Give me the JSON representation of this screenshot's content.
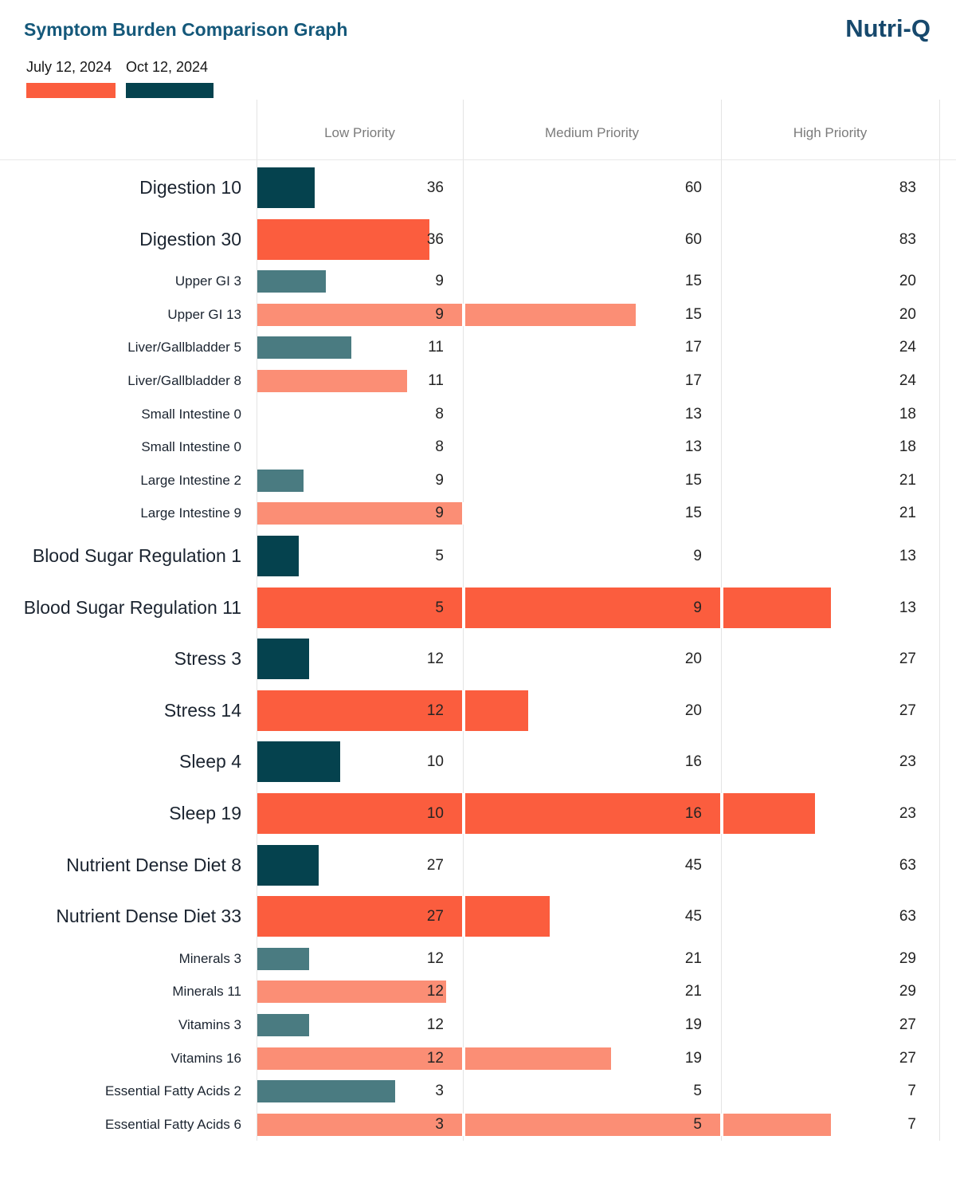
{
  "header": {
    "title": "Symptom Burden Comparison Graph",
    "brand": "Nutri-Q",
    "legend": [
      {
        "label": "July 12, 2024",
        "color": "#fb5d3e"
      },
      {
        "label": "Oct 12, 2024",
        "color": "#05424e"
      }
    ]
  },
  "columns": [
    "Low Priority",
    "Medium Priority",
    "High Priority"
  ],
  "chart_data": {
    "type": "bar",
    "orientation": "horizontal",
    "title": "Symptom Burden Comparison Graph",
    "legend_position": "top-left",
    "column_headers": [
      "Low Priority",
      "Medium Priority",
      "High Priority"
    ],
    "note": "Each row shows a symptom-burden score bar scaled piecewise across Low/Medium/High priority threshold columns; the three numbers per row are that section's Low, Medium and High priority thresholds.",
    "colors": {
      "July 12, 2024": {
        "major": "#fb5d3e",
        "sub": "#fb8e75"
      },
      "Oct 12, 2024": {
        "major": "#05424e",
        "sub": "#4a7b81"
      }
    },
    "rows": [
      {
        "label": "Digestion 10",
        "value": 10,
        "thresholds": [
          36,
          60,
          83
        ],
        "series": "Oct 12, 2024",
        "group": "major"
      },
      {
        "label": "Digestion 30",
        "value": 30,
        "thresholds": [
          36,
          60,
          83
        ],
        "series": "July 12, 2024",
        "group": "major"
      },
      {
        "label": "Upper GI 3",
        "value": 3,
        "thresholds": [
          9,
          15,
          20
        ],
        "series": "Oct 12, 2024",
        "group": "sub"
      },
      {
        "label": "Upper GI 13",
        "value": 13,
        "thresholds": [
          9,
          15,
          20
        ],
        "series": "July 12, 2024",
        "group": "sub"
      },
      {
        "label": "Liver/Gallbladder 5",
        "value": 5,
        "thresholds": [
          11,
          17,
          24
        ],
        "series": "Oct 12, 2024",
        "group": "sub"
      },
      {
        "label": "Liver/Gallbladder 8",
        "value": 8,
        "thresholds": [
          11,
          17,
          24
        ],
        "series": "July 12, 2024",
        "group": "sub"
      },
      {
        "label": "Small Intestine 0",
        "value": 0,
        "thresholds": [
          8,
          13,
          18
        ],
        "series": "Oct 12, 2024",
        "group": "sub"
      },
      {
        "label": "Small Intestine 0",
        "value": 0,
        "thresholds": [
          8,
          13,
          18
        ],
        "series": "July 12, 2024",
        "group": "sub"
      },
      {
        "label": "Large Intestine 2",
        "value": 2,
        "thresholds": [
          9,
          15,
          21
        ],
        "series": "Oct 12, 2024",
        "group": "sub"
      },
      {
        "label": "Large Intestine 9",
        "value": 9,
        "thresholds": [
          9,
          15,
          21
        ],
        "series": "July 12, 2024",
        "group": "sub"
      },
      {
        "label": "Blood Sugar Regulation 1",
        "value": 1,
        "thresholds": [
          5,
          9,
          13
        ],
        "series": "Oct 12, 2024",
        "group": "major"
      },
      {
        "label": "Blood Sugar Regulation 11",
        "value": 11,
        "thresholds": [
          5,
          9,
          13
        ],
        "series": "July 12, 2024",
        "group": "major"
      },
      {
        "label": "Stress 3",
        "value": 3,
        "thresholds": [
          12,
          20,
          27
        ],
        "series": "Oct 12, 2024",
        "group": "major"
      },
      {
        "label": "Stress 14",
        "value": 14,
        "thresholds": [
          12,
          20,
          27
        ],
        "series": "July 12, 2024",
        "group": "major"
      },
      {
        "label": "Sleep 4",
        "value": 4,
        "thresholds": [
          10,
          16,
          23
        ],
        "series": "Oct 12, 2024",
        "group": "major"
      },
      {
        "label": "Sleep 19",
        "value": 19,
        "thresholds": [
          10,
          16,
          23
        ],
        "series": "July 12, 2024",
        "group": "major"
      },
      {
        "label": "Nutrient Dense Diet 8",
        "value": 8,
        "thresholds": [
          27,
          45,
          63
        ],
        "series": "Oct 12, 2024",
        "group": "major"
      },
      {
        "label": "Nutrient Dense Diet 33",
        "value": 33,
        "thresholds": [
          27,
          45,
          63
        ],
        "series": "July 12, 2024",
        "group": "major"
      },
      {
        "label": "Minerals 3",
        "value": 3,
        "thresholds": [
          12,
          21,
          29
        ],
        "series": "Oct 12, 2024",
        "group": "sub"
      },
      {
        "label": "Minerals 11",
        "value": 11,
        "thresholds": [
          12,
          21,
          29
        ],
        "series": "July 12, 2024",
        "group": "sub"
      },
      {
        "label": "Vitamins 3",
        "value": 3,
        "thresholds": [
          12,
          19,
          27
        ],
        "series": "Oct 12, 2024",
        "group": "sub"
      },
      {
        "label": "Vitamins 16",
        "value": 16,
        "thresholds": [
          12,
          19,
          27
        ],
        "series": "July 12, 2024",
        "group": "sub"
      },
      {
        "label": "Essential Fatty Acids 2",
        "value": 2,
        "thresholds": [
          3,
          5,
          7
        ],
        "series": "Oct 12, 2024",
        "group": "sub"
      },
      {
        "label": "Essential Fatty Acids 6",
        "value": 6,
        "thresholds": [
          3,
          5,
          7
        ],
        "series": "July 12, 2024",
        "group": "sub"
      }
    ]
  }
}
